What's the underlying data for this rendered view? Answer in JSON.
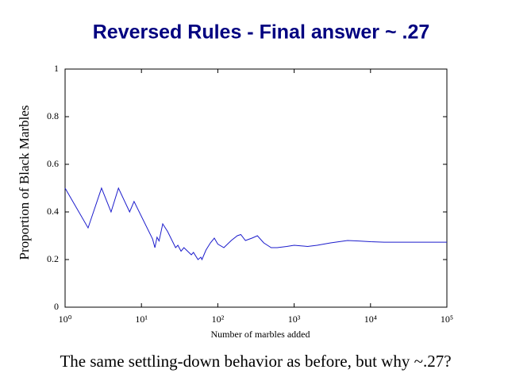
{
  "chart_data": {
    "type": "line",
    "title": "Reversed Rules - Final answer ~ .27",
    "x_label": "Number of marbles added",
    "y_label": "Proportion of Black Marbles",
    "caption": "The same settling-down behavior as before, but why ~.27?",
    "x_scale": "log",
    "color": "#1c1ccc",
    "x": [
      1,
      2,
      3,
      4,
      5,
      7,
      8,
      14,
      15,
      16,
      17,
      19,
      22,
      28,
      30,
      33,
      36,
      45,
      48,
      55,
      60,
      62,
      70,
      80,
      90,
      100,
      120,
      150,
      180,
      200,
      230,
      280,
      330,
      400,
      500,
      600,
      800,
      1000,
      1500,
      2000,
      3000,
      5000,
      7000,
      10000,
      15000,
      100000
    ],
    "values": [
      0.5,
      0.333,
      0.5,
      0.4,
      0.5,
      0.4,
      0.444,
      0.286,
      0.25,
      0.294,
      0.278,
      0.35,
      0.318,
      0.25,
      0.26,
      0.235,
      0.25,
      0.22,
      0.23,
      0.2,
      0.21,
      0.2,
      0.24,
      0.27,
      0.29,
      0.265,
      0.25,
      0.28,
      0.3,
      0.305,
      0.28,
      0.29,
      0.3,
      0.27,
      0.25,
      0.25,
      0.255,
      0.26,
      0.255,
      0.26,
      0.27,
      0.28,
      0.278,
      0.275,
      0.273,
      0.273
    ],
    "xlim": [
      1,
      100000
    ],
    "xticks": [
      {
        "value": 1,
        "label": "10⁰"
      },
      {
        "value": 10,
        "label": "10¹"
      },
      {
        "value": 100,
        "label": "10²"
      },
      {
        "value": 1000,
        "label": "10³"
      },
      {
        "value": 10000,
        "label": "10⁴"
      },
      {
        "value": 100000,
        "label": "10⁵"
      }
    ],
    "ylim": [
      0,
      1
    ],
    "yticks": [
      0,
      0.2,
      0.4,
      0.6,
      0.8,
      1
    ]
  }
}
